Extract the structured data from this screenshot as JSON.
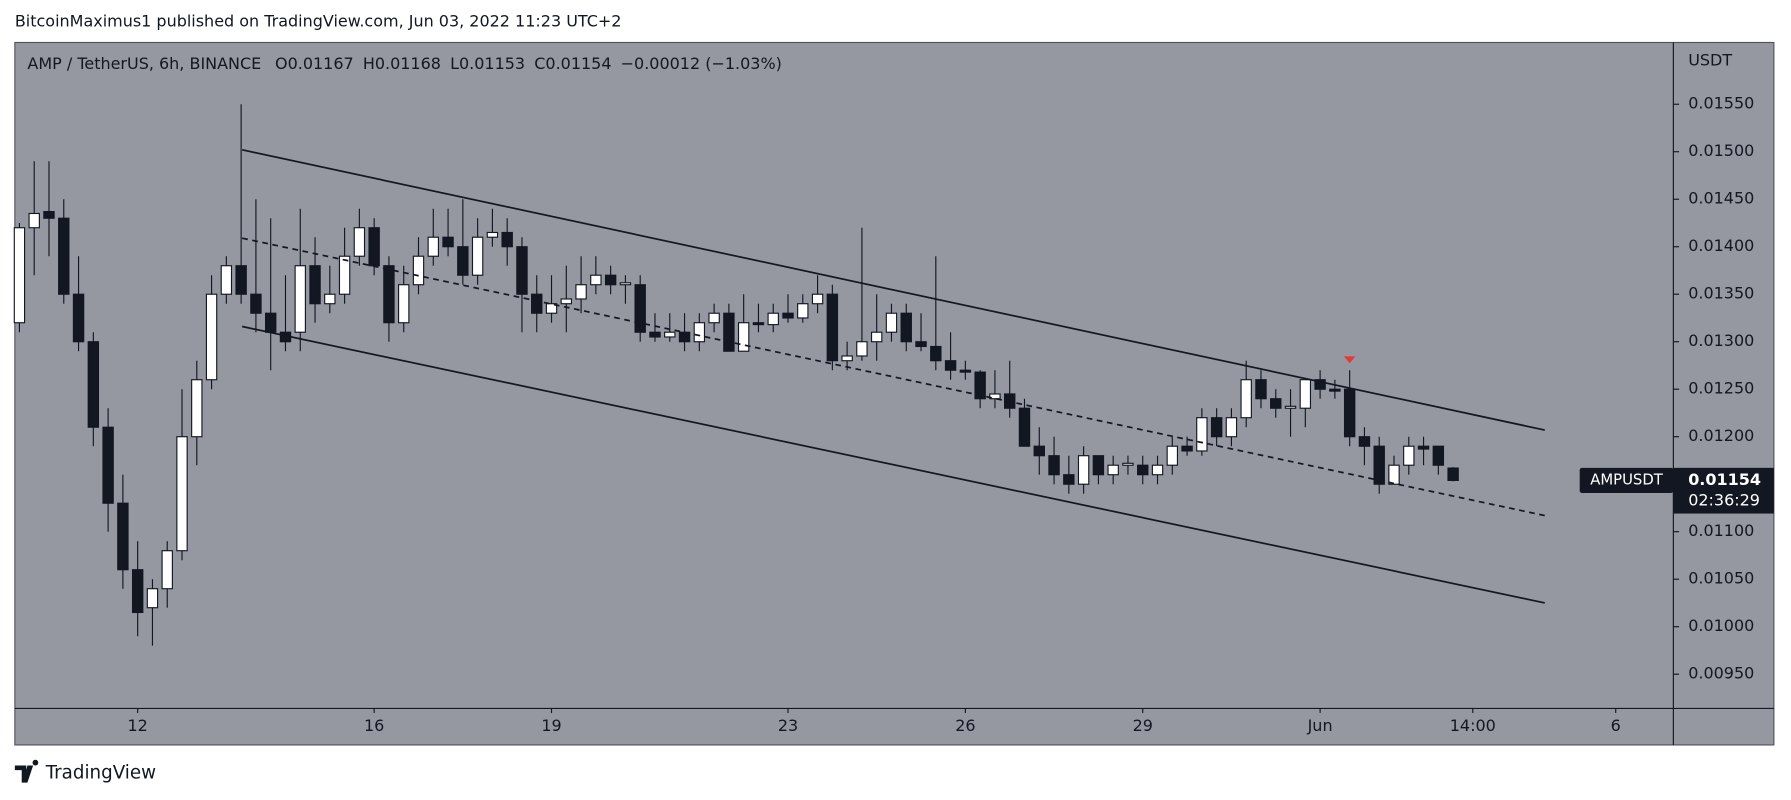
{
  "header": {
    "publisher": "BitcoinMaximus1 published on TradingView.com, Jun 03, 2022 11:23 UTC+2",
    "brand": "TradingView"
  },
  "chart_data": {
    "type": "candlestick",
    "symbol": "AMP / TetherUS, 6h, BINANCE",
    "ohlc_legend": [
      {
        "key": "O",
        "value": 0.01167
      },
      {
        "key": "H",
        "value": 0.01168
      },
      {
        "key": "L",
        "value": 0.01153
      },
      {
        "key": "C",
        "value": 0.01154
      }
    ],
    "change": "−0.00012 (−1.03%)",
    "currency": "USDT",
    "ticker": "AMPUSDT",
    "last_price": 0.01154,
    "countdown": "02:36:29",
    "background": "#9598a1",
    "up_color": "#ffffff",
    "down_color": "#131722",
    "grid": false,
    "open": [
      0.0132,
      0.0142,
      0.01437,
      0.0143,
      0.0135,
      0.013,
      0.0121,
      0.0113,
      0.0106,
      0.0102,
      0.0104,
      0.0108,
      0.012,
      0.0126,
      0.0135,
      0.0138,
      0.0135,
      0.0133,
      0.0131,
      0.0131,
      0.0138,
      0.0134,
      0.0135,
      0.0139,
      0.0142,
      0.0138,
      0.0132,
      0.0136,
      0.0139,
      0.0141,
      0.014,
      0.0137,
      0.0141,
      0.01415,
      0.014,
      0.0135,
      0.0133,
      0.0134,
      0.01345,
      0.0136,
      0.0137,
      0.0136,
      0.0136,
      0.0131,
      0.01305,
      0.0131,
      0.013,
      0.0132,
      0.0133,
      0.0129,
      0.0132,
      0.01318,
      0.0133,
      0.01325,
      0.0134,
      0.0135,
      0.0128,
      0.01285,
      0.013,
      0.0131,
      0.0133,
      0.013,
      0.01295,
      0.0128,
      0.0127,
      0.01268,
      0.0124,
      0.01245,
      0.0123,
      0.0119,
      0.0118,
      0.0116,
      0.0115,
      0.0118,
      0.0116,
      0.0117,
      0.0117,
      0.0116,
      0.0117,
      0.0119,
      0.01185,
      0.0122,
      0.012,
      0.0122,
      0.0126,
      0.0124,
      0.0123,
      0.0123,
      0.0126,
      0.0125,
      0.0125,
      0.012,
      0.0119,
      0.0115,
      0.0117,
      0.0119,
      0.0119,
      0.01167
    ],
    "high": [
      0.01425,
      0.0149,
      0.0149,
      0.0145,
      0.0139,
      0.0131,
      0.0123,
      0.0116,
      0.0109,
      0.0105,
      0.0109,
      0.0125,
      0.0128,
      0.0137,
      0.0139,
      0.0155,
      0.0145,
      0.0143,
      0.0137,
      0.0144,
      0.0141,
      0.0138,
      0.0142,
      0.0144,
      0.0143,
      0.0139,
      0.0138,
      0.0141,
      0.0144,
      0.0144,
      0.0145,
      0.0143,
      0.0144,
      0.0143,
      0.0141,
      0.0137,
      0.0137,
      0.0138,
      0.0139,
      0.0139,
      0.0138,
      0.0137,
      0.0137,
      0.0133,
      0.0133,
      0.0133,
      0.0133,
      0.0134,
      0.0134,
      0.0135,
      0.0134,
      0.0134,
      0.0135,
      0.0135,
      0.0137,
      0.0136,
      0.013,
      0.0142,
      0.0135,
      0.0134,
      0.0134,
      0.0133,
      0.0139,
      0.0131,
      0.0128,
      0.0127,
      0.0127,
      0.0128,
      0.0124,
      0.0121,
      0.012,
      0.0118,
      0.0119,
      0.0118,
      0.0118,
      0.0118,
      0.0118,
      0.0118,
      0.012,
      0.012,
      0.0123,
      0.0123,
      0.0123,
      0.0128,
      0.0127,
      0.0125,
      0.0125,
      0.0126,
      0.0127,
      0.0126,
      0.0127,
      0.0121,
      0.012,
      0.0118,
      0.012,
      0.012,
      0.0119,
      0.01168
    ],
    "low": [
      0.0131,
      0.0137,
      0.0139,
      0.0134,
      0.0129,
      0.0119,
      0.011,
      0.0104,
      0.0099,
      0.0098,
      0.0102,
      0.0107,
      0.0117,
      0.0125,
      0.0134,
      0.0134,
      0.0131,
      0.0127,
      0.0129,
      0.0129,
      0.0132,
      0.0133,
      0.0134,
      0.0138,
      0.0137,
      0.013,
      0.0131,
      0.0135,
      0.0138,
      0.0139,
      0.0136,
      0.0136,
      0.014,
      0.0138,
      0.0131,
      0.0131,
      0.0132,
      0.0131,
      0.0133,
      0.0135,
      0.0135,
      0.0134,
      0.013,
      0.013,
      0.013,
      0.0129,
      0.0129,
      0.0131,
      0.0129,
      0.0129,
      0.0131,
      0.0131,
      0.0132,
      0.0132,
      0.0133,
      0.0127,
      0.0127,
      0.0128,
      0.0128,
      0.013,
      0.0129,
      0.0129,
      0.0127,
      0.0126,
      0.0126,
      0.0123,
      0.0123,
      0.0122,
      0.0119,
      0.0116,
      0.0115,
      0.0114,
      0.0114,
      0.0115,
      0.0115,
      0.0116,
      0.0115,
      0.0115,
      0.0116,
      0.0118,
      0.0118,
      0.0119,
      0.0119,
      0.0121,
      0.0123,
      0.0122,
      0.012,
      0.0121,
      0.0124,
      0.0124,
      0.0119,
      0.0117,
      0.0114,
      0.0115,
      0.0116,
      0.0117,
      0.0116,
      0.01153
    ],
    "close": [
      0.0142,
      0.01435,
      0.0143,
      0.0135,
      0.013,
      0.0121,
      0.0113,
      0.0106,
      0.01015,
      0.0104,
      0.0108,
      0.012,
      0.0126,
      0.0135,
      0.0138,
      0.0135,
      0.0133,
      0.0131,
      0.013,
      0.0138,
      0.0134,
      0.0135,
      0.0139,
      0.0142,
      0.0138,
      0.0132,
      0.0136,
      0.0139,
      0.0141,
      0.014,
      0.0137,
      0.0141,
      0.01415,
      0.014,
      0.0135,
      0.0133,
      0.0134,
      0.01345,
      0.0136,
      0.0137,
      0.0136,
      0.01362,
      0.0131,
      0.01305,
      0.0131,
      0.013,
      0.0132,
      0.0133,
      0.0129,
      0.0132,
      0.01318,
      0.0133,
      0.01325,
      0.0134,
      0.0135,
      0.0128,
      0.01285,
      0.013,
      0.0131,
      0.0133,
      0.013,
      0.01295,
      0.0128,
      0.0127,
      0.01268,
      0.0124,
      0.01245,
      0.0123,
      0.0119,
      0.0118,
      0.0116,
      0.0115,
      0.0118,
      0.0116,
      0.0117,
      0.01172,
      0.0116,
      0.0117,
      0.0119,
      0.01185,
      0.0122,
      0.012,
      0.0122,
      0.0126,
      0.0124,
      0.0123,
      0.01232,
      0.0126,
      0.0125,
      0.01248,
      0.012,
      0.0119,
      0.0115,
      0.0117,
      0.0119,
      0.01187,
      0.0117,
      0.01154
    ],
    "xlim": [
      -0.31,
      111.9
    ],
    "xticks": [
      {
        "value": 8,
        "label": "12"
      },
      {
        "value": 24,
        "label": "16"
      },
      {
        "value": 36,
        "label": "19"
      },
      {
        "value": 52,
        "label": "23"
      },
      {
        "value": 64,
        "label": "26"
      },
      {
        "value": 76,
        "label": "29"
      },
      {
        "value": 88,
        "label": "Jun"
      },
      {
        "value": 98.33,
        "label": "14:00"
      },
      {
        "value": 108,
        "label": "6"
      }
    ],
    "ylim": [
      0.00914,
      0.01615
    ],
    "yticks": [
      {
        "value": 0.0155,
        "label": "0.01550"
      },
      {
        "value": 0.015,
        "label": "0.01500"
      },
      {
        "value": 0.0145,
        "label": "0.01450"
      },
      {
        "value": 0.014,
        "label": "0.01400"
      },
      {
        "value": 0.0135,
        "label": "0.01350"
      },
      {
        "value": 0.013,
        "label": "0.01300"
      },
      {
        "value": 0.0125,
        "label": "0.01250"
      },
      {
        "value": 0.012,
        "label": "0.01200"
      },
      {
        "value": 0.011,
        "label": "0.01100"
      },
      {
        "value": 0.0105,
        "label": "0.01050"
      },
      {
        "value": 0.01,
        "label": "0.01000"
      },
      {
        "value": 0.0095,
        "label": "0.00950"
      }
    ],
    "trendlines": [
      {
        "style": "solid",
        "points": [
          [
            15.07,
            0.01502
          ],
          [
            103.2,
            0.01207
          ]
        ]
      },
      {
        "style": "dashed",
        "points": [
          [
            15.07,
            0.01409
          ],
          [
            103.2,
            0.01117
          ]
        ]
      },
      {
        "style": "solid",
        "points": [
          [
            15.07,
            0.01316
          ],
          [
            103.2,
            0.01025
          ]
        ]
      }
    ],
    "marker": {
      "x": 90,
      "y": 0.01281,
      "color": "#e53935"
    }
  }
}
